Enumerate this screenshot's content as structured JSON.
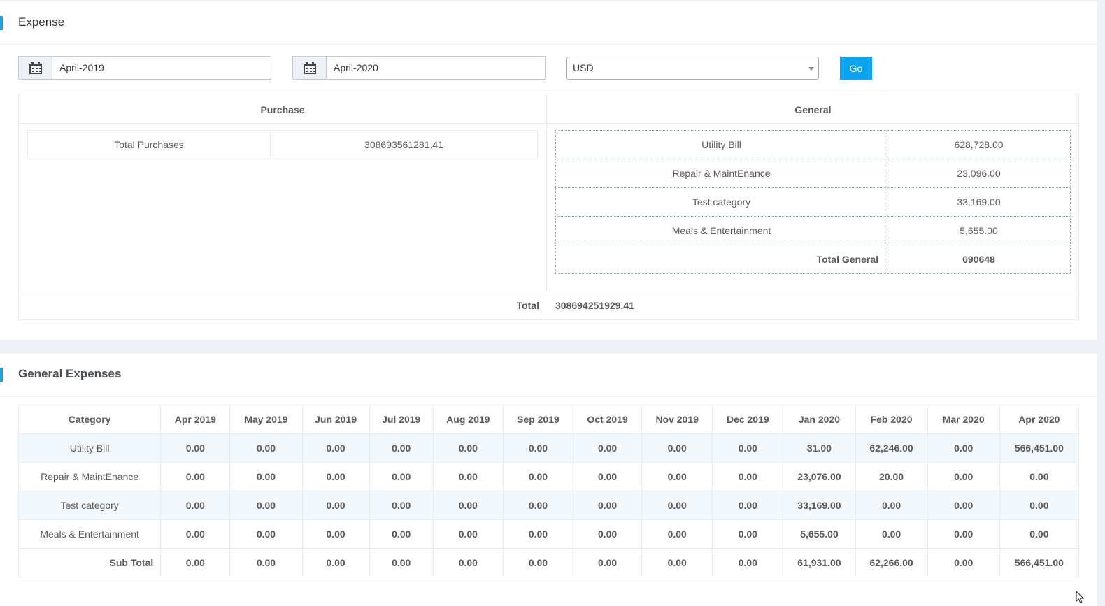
{
  "expense_panel": {
    "title": "Expense",
    "filters": {
      "date_from": "April-2019",
      "date_to": "April-2020",
      "currency": "USD",
      "go_label": "Go",
      "calendar_icon": "calendar-icon"
    },
    "purchase": {
      "heading": "Purchase",
      "rows": [
        {
          "label": "Total Purchases",
          "value": "308693561281.41"
        }
      ]
    },
    "general": {
      "heading": "General",
      "rows": [
        {
          "label": "Utility Bill",
          "value": "628,728.00"
        },
        {
          "label": "Repair & MaintEnance",
          "value": "23,096.00"
        },
        {
          "label": "Test category",
          "value": "33,169.00"
        },
        {
          "label": "Meals & Entertainment",
          "value": "5,655.00"
        }
      ],
      "total_label": "Total General",
      "total_value": "690648"
    },
    "total_label": "Total",
    "total_value": "308694251929.41"
  },
  "general_expenses_panel": {
    "title": "General Expenses",
    "columns": [
      "Category",
      "Apr 2019",
      "May 2019",
      "Jun 2019",
      "Jul 2019",
      "Aug 2019",
      "Sep 2019",
      "Oct 2019",
      "Nov 2019",
      "Dec 2019",
      "Jan 2020",
      "Feb 2020",
      "Mar 2020",
      "Apr 2020"
    ],
    "rows": [
      {
        "category": "Utility Bill",
        "values": [
          "0.00",
          "0.00",
          "0.00",
          "0.00",
          "0.00",
          "0.00",
          "0.00",
          "0.00",
          "0.00",
          "31.00",
          "62,246.00",
          "0.00",
          "566,451.00"
        ]
      },
      {
        "category": "Repair & MaintEnance",
        "values": [
          "0.00",
          "0.00",
          "0.00",
          "0.00",
          "0.00",
          "0.00",
          "0.00",
          "0.00",
          "0.00",
          "23,076.00",
          "20.00",
          "0.00",
          "0.00"
        ]
      },
      {
        "category": "Test category",
        "values": [
          "0.00",
          "0.00",
          "0.00",
          "0.00",
          "0.00",
          "0.00",
          "0.00",
          "0.00",
          "0.00",
          "33,169.00",
          "0.00",
          "0.00",
          "0.00"
        ]
      },
      {
        "category": "Meals & Entertainment",
        "values": [
          "0.00",
          "0.00",
          "0.00",
          "0.00",
          "0.00",
          "0.00",
          "0.00",
          "0.00",
          "0.00",
          "5,655.00",
          "0.00",
          "0.00",
          "0.00"
        ]
      }
    ],
    "subtotal": {
      "category": "Sub Total",
      "values": [
        "0.00",
        "0.00",
        "0.00",
        "0.00",
        "0.00",
        "0.00",
        "0.00",
        "0.00",
        "0.00",
        "61,931.00",
        "62,266.00",
        "0.00",
        "566,451.00"
      ]
    }
  }
}
